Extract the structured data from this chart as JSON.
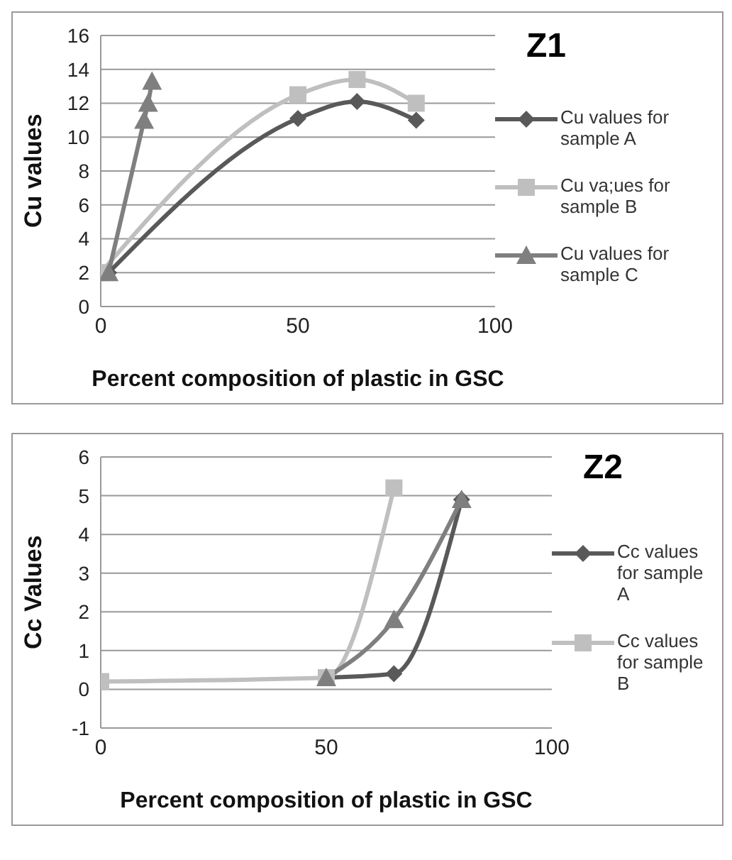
{
  "chart_data": [
    {
      "type": "line",
      "title": "Z1",
      "xlabel": "Percent  composition of plastic in GSC",
      "ylabel": "Cu values",
      "xlim": [
        0,
        100
      ],
      "xticks": [
        0,
        50,
        100
      ],
      "ylim": [
        0,
        16
      ],
      "yticks": [
        0,
        2,
        4,
        6,
        8,
        10,
        12,
        14,
        16
      ],
      "grid": "y",
      "legend": "right",
      "line_style": "solid",
      "series": [
        {
          "name": "Cu values for sample A",
          "color": "#595959",
          "marker": "diamond",
          "x": [
            2,
            50,
            65,
            80
          ],
          "values": [
            2,
            11.1,
            12.1,
            11
          ]
        },
        {
          "name": "Cu va;ues for sample B",
          "color": "#bfbfbf",
          "marker": "square",
          "x": [
            0,
            50,
            65,
            80
          ],
          "values": [
            2,
            12.5,
            13.4,
            12
          ]
        },
        {
          "name": "Cu values for sample C",
          "color": "#7f7f7f",
          "marker": "triangle",
          "x": [
            2,
            11,
            12,
            13
          ],
          "values": [
            2,
            11,
            12,
            13.3
          ]
        }
      ]
    },
    {
      "type": "line",
      "title": "Z2",
      "xlabel": "Percent  composition of plastic in GSC",
      "ylabel": "Cc Values",
      "xlim": [
        0,
        100
      ],
      "xticks": [
        0,
        50,
        100
      ],
      "ylim": [
        -1,
        6
      ],
      "yticks": [
        -1,
        0,
        1,
        2,
        3,
        4,
        5,
        6
      ],
      "grid": "y",
      "legend": "right",
      "line_style": "solid",
      "series": [
        {
          "name": "Cc values for sample A",
          "color": "#595959",
          "marker": "diamond",
          "x": [
            50,
            65,
            80
          ],
          "values": [
            0.3,
            0.4,
            4.9
          ]
        },
        {
          "name": "Cc values for sample B",
          "color": "#bfbfbf",
          "marker": "square",
          "x": [
            0,
            50,
            65
          ],
          "values": [
            0.2,
            0.3,
            5.2
          ]
        },
        {
          "color": "#7f7f7f",
          "marker": "triangle",
          "x": [
            50,
            65,
            80
          ],
          "values": [
            0.3,
            1.8,
            4.9
          ]
        }
      ]
    }
  ]
}
